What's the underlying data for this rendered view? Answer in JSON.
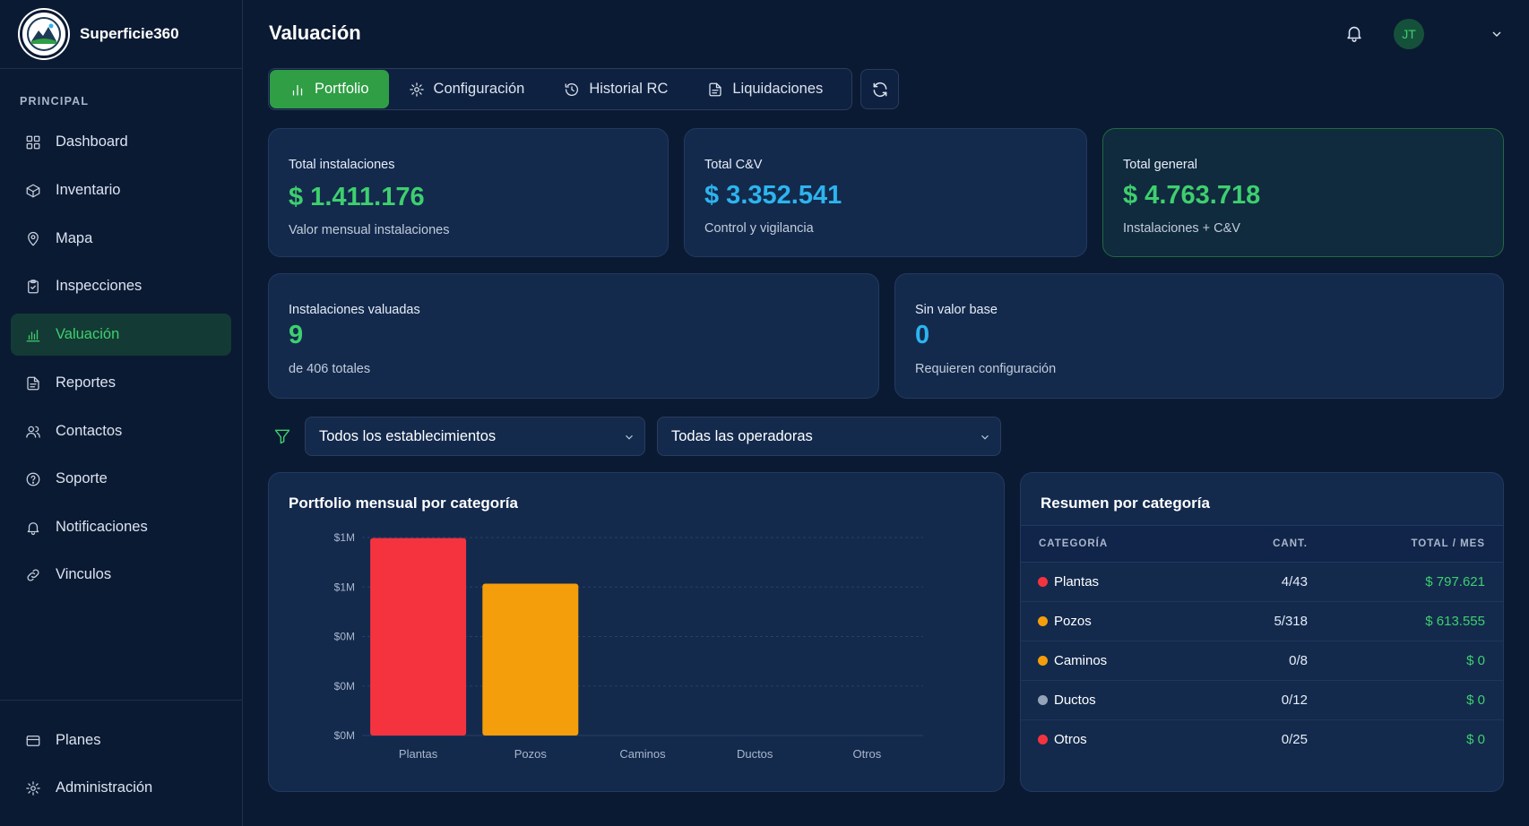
{
  "app": {
    "name": "Superficie360",
    "logo_icon": "mountain-logo-icon"
  },
  "sidebar": {
    "section_label": "PRINCIPAL",
    "items": [
      {
        "label": "Dashboard",
        "icon": "grid-icon"
      },
      {
        "label": "Inventario",
        "icon": "box-icon"
      },
      {
        "label": "Mapa",
        "icon": "map-pin-icon"
      },
      {
        "label": "Inspecciones",
        "icon": "clipboard-icon"
      },
      {
        "label": "Valuación",
        "icon": "bar-chart-icon",
        "active": true
      },
      {
        "label": "Reportes",
        "icon": "file-icon"
      },
      {
        "label": "Contactos",
        "icon": "users-icon"
      },
      {
        "label": "Soporte",
        "icon": "help-circle-icon"
      },
      {
        "label": "Notificaciones",
        "icon": "bell-icon"
      },
      {
        "label": "Vinculos",
        "icon": "link-icon"
      }
    ],
    "bottom_items": [
      {
        "label": "Planes",
        "icon": "credit-card-icon"
      },
      {
        "label": "Administración",
        "icon": "gear-icon"
      }
    ]
  },
  "header": {
    "title": "Valuación",
    "avatar_initials": "JT"
  },
  "tabs": [
    {
      "label": "Portfolio",
      "icon": "bar-chart-icon",
      "active": true
    },
    {
      "label": "Configuración",
      "icon": "gear-icon"
    },
    {
      "label": "Historial RC",
      "icon": "history-icon"
    },
    {
      "label": "Liquidaciones",
      "icon": "file-icon"
    }
  ],
  "stats": {
    "total_instalaciones": {
      "label": "Total instalaciones",
      "value": "$ 1.411.176",
      "sub": "Valor mensual instalaciones"
    },
    "total_cv": {
      "label": "Total C&V",
      "value": "$ 3.352.541",
      "sub": "Control y vigilancia"
    },
    "total_general": {
      "label": "Total general",
      "value": "$ 4.763.718",
      "sub": "Instalaciones + C&V"
    },
    "instalaciones_valuadas": {
      "label": "Instalaciones valuadas",
      "value": "9",
      "sub": "de 406 totales"
    },
    "sin_valor_base": {
      "label": "Sin valor base",
      "value": "0",
      "sub": "Requieren configuración"
    }
  },
  "filters": {
    "establecimientos": "Todos los establecimientos",
    "operadoras": "Todas las operadoras"
  },
  "chart_panel": {
    "title": "Portfolio mensual por categoría"
  },
  "chart_data": {
    "type": "bar",
    "title": "Portfolio mensual por categoría",
    "categories": [
      "Plantas",
      "Pozos",
      "Caminos",
      "Ductos",
      "Otros"
    ],
    "values": [
      797621,
      613555,
      0,
      0,
      0
    ],
    "colors": [
      "#f5333f",
      "#f59e0b",
      "#f59e0b",
      "#94a3b8",
      "#f5333f"
    ],
    "ylim": [
      0,
      800000
    ],
    "yticks": [
      0,
      200000,
      400000,
      600000,
      800000
    ],
    "ytick_labels": [
      "$0M",
      "$0M",
      "$0M",
      "$1M",
      "$1M"
    ],
    "grid": true
  },
  "summary": {
    "title": "Resumen por categoría",
    "headers": {
      "categoria": "CATEGORÍA",
      "cant": "CANT.",
      "total": "TOTAL / MES"
    },
    "rows": [
      {
        "name": "Plantas",
        "color": "#f5333f",
        "cant": "4/43",
        "total": "$ 797.621"
      },
      {
        "name": "Pozos",
        "color": "#f59e0b",
        "cant": "5/318",
        "total": "$ 613.555"
      },
      {
        "name": "Caminos",
        "color": "#f59e0b",
        "cant": "0/8",
        "total": "$ 0"
      },
      {
        "name": "Ductos",
        "color": "#94a3b8",
        "cant": "0/12",
        "total": "$ 0"
      },
      {
        "name": "Otros",
        "color": "#f5333f",
        "cant": "0/25",
        "total": "$ 0"
      }
    ]
  }
}
